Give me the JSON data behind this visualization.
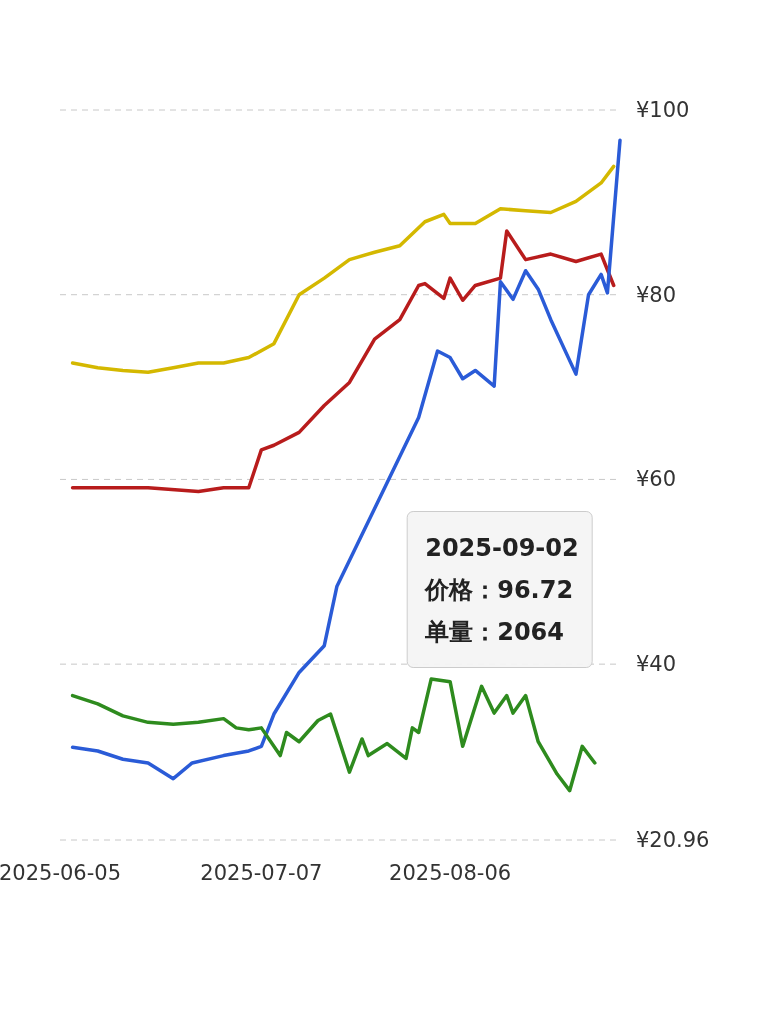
{
  "chart_data": {
    "type": "line",
    "xlim": [
      "2025-06-05",
      "2025-09-02"
    ],
    "xticks": [
      "2025-06-05",
      "2025-07-07",
      "2025-08-06"
    ],
    "ylim": [
      20.96,
      100
    ],
    "yticks": [
      {
        "value": 100,
        "label": "¥100"
      },
      {
        "value": 80,
        "label": "¥80"
      },
      {
        "value": 60,
        "label": "¥60"
      },
      {
        "value": 40,
        "label": "¥40"
      },
      {
        "value": 20.96,
        "label": "¥20.96"
      }
    ],
    "grid": "y",
    "line_style": "solid",
    "series": [
      {
        "color": "#d4b800",
        "x": [
          "2025-06-07",
          "2025-06-11",
          "2025-06-15",
          "2025-06-19",
          "2025-06-23",
          "2025-06-27",
          "2025-07-01",
          "2025-07-05",
          "2025-07-09",
          "2025-07-13",
          "2025-07-17",
          "2025-07-21",
          "2025-07-25",
          "2025-07-29",
          "2025-08-02",
          "2025-08-05",
          "2025-08-06",
          "2025-08-10",
          "2025-08-14",
          "2025-08-18",
          "2025-08-22",
          "2025-08-26",
          "2025-08-30",
          "2025-09-01"
        ],
        "values": [
          72.6,
          72.1,
          71.8,
          71.6,
          72.1,
          72.6,
          72.6,
          73.2,
          74.7,
          80.0,
          81.8,
          83.8,
          84.6,
          85.3,
          87.9,
          88.7,
          87.7,
          87.7,
          89.3,
          89.1,
          88.9,
          90.1,
          92.1,
          93.9
        ]
      },
      {
        "color": "#b81c1c",
        "x": [
          "2025-06-07",
          "2025-06-19",
          "2025-06-27",
          "2025-07-01",
          "2025-07-05",
          "2025-07-07",
          "2025-07-09",
          "2025-07-13",
          "2025-07-17",
          "2025-07-21",
          "2025-07-25",
          "2025-07-29",
          "2025-08-01",
          "2025-08-02",
          "2025-08-05",
          "2025-08-06",
          "2025-08-08",
          "2025-08-10",
          "2025-08-14",
          "2025-08-15",
          "2025-08-18",
          "2025-08-22",
          "2025-08-26",
          "2025-08-30",
          "2025-09-01"
        ],
        "values": [
          59.1,
          59.1,
          58.7,
          59.1,
          59.1,
          63.2,
          63.7,
          65.1,
          68.0,
          70.5,
          75.2,
          77.3,
          81.0,
          81.2,
          79.6,
          81.8,
          79.4,
          81.0,
          81.8,
          86.9,
          83.8,
          84.4,
          83.6,
          84.4,
          81.0
        ]
      },
      {
        "color": "#2a5bd7",
        "x": [
          "2025-06-07",
          "2025-06-11",
          "2025-06-15",
          "2025-06-19",
          "2025-06-23",
          "2025-06-26",
          "2025-07-01",
          "2025-07-05",
          "2025-07-07",
          "2025-07-09",
          "2025-07-13",
          "2025-07-17",
          "2025-07-19",
          "2025-08-01",
          "2025-08-04",
          "2025-08-06",
          "2025-08-08",
          "2025-08-10",
          "2025-08-13",
          "2025-08-14",
          "2025-08-16",
          "2025-08-18",
          "2025-08-20",
          "2025-08-22",
          "2025-08-26",
          "2025-08-28",
          "2025-08-30",
          "2025-08-31",
          "2025-09-02"
        ],
        "values": [
          31.0,
          30.6,
          29.7,
          29.3,
          27.6,
          29.3,
          30.1,
          30.6,
          31.1,
          34.6,
          39.1,
          42.0,
          48.4,
          66.7,
          73.9,
          73.2,
          70.9,
          71.8,
          70.1,
          81.4,
          79.5,
          82.6,
          80.6,
          77.3,
          71.4,
          80.0,
          82.2,
          80.2,
          96.72
        ]
      },
      {
        "color": "#2e8b1e",
        "x": [
          "2025-06-07",
          "2025-06-11",
          "2025-06-15",
          "2025-06-19",
          "2025-06-23",
          "2025-06-27",
          "2025-07-01",
          "2025-07-03",
          "2025-07-05",
          "2025-07-07",
          "2025-07-10",
          "2025-07-11",
          "2025-07-13",
          "2025-07-16",
          "2025-07-18",
          "2025-07-21",
          "2025-07-23",
          "2025-07-24",
          "2025-07-27",
          "2025-07-30",
          "2025-07-31",
          "2025-08-01",
          "2025-08-03",
          "2025-08-06",
          "2025-08-08",
          "2025-08-11",
          "2025-08-13",
          "2025-08-15",
          "2025-08-16",
          "2025-08-18",
          "2025-08-20",
          "2025-08-23",
          "2025-08-25",
          "2025-08-27",
          "2025-08-29"
        ],
        "values": [
          36.6,
          35.7,
          34.4,
          33.7,
          33.5,
          33.7,
          34.1,
          33.1,
          32.9,
          33.1,
          30.1,
          32.6,
          31.6,
          33.9,
          34.6,
          28.3,
          31.9,
          30.1,
          31.4,
          29.8,
          33.1,
          32.6,
          38.4,
          38.1,
          31.1,
          37.6,
          34.7,
          36.6,
          34.7,
          36.6,
          31.6,
          28.1,
          26.3,
          31.1,
          29.3
        ]
      }
    ],
    "annotations": [
      "2025-09-02\n价格：96.72\n单量：2064"
    ]
  }
}
